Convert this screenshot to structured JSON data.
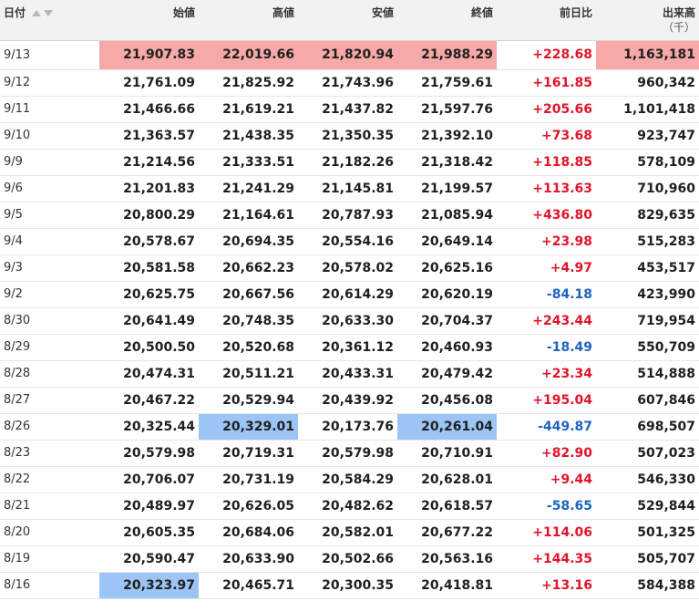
{
  "header": {
    "date": "日付",
    "open": "始値",
    "high": "高値",
    "low": "安値",
    "close": "終値",
    "change": "前日比",
    "volume": "出来高",
    "volume_unit": "（千）",
    "sort_up_icon": "sort-up-icon",
    "sort_down_icon": "sort-down-icon"
  },
  "colors": {
    "positive": "#e0142a",
    "negative": "#1e63c2",
    "highlight_max": "#f7a8a8",
    "highlight_min": "#9cc4f5"
  },
  "rows": [
    {
      "date": "9/13",
      "open": "21,907.83",
      "high": "22,019.66",
      "low": "21,820.94",
      "close": "21,988.29",
      "change": "+228.68",
      "volume": "1,163,181",
      "hl": {
        "open": "max",
        "high": "max",
        "low": "max",
        "close": "max",
        "volume": "max"
      }
    },
    {
      "date": "9/12",
      "open": "21,761.09",
      "high": "21,825.92",
      "low": "21,743.96",
      "close": "21,759.61",
      "change": "+161.85",
      "volume": "960,342",
      "hl": {}
    },
    {
      "date": "9/11",
      "open": "21,466.66",
      "high": "21,619.21",
      "low": "21,437.82",
      "close": "21,597.76",
      "change": "+205.66",
      "volume": "1,101,418",
      "hl": {}
    },
    {
      "date": "9/10",
      "open": "21,363.57",
      "high": "21,438.35",
      "low": "21,350.35",
      "close": "21,392.10",
      "change": "+73.68",
      "volume": "923,747",
      "hl": {}
    },
    {
      "date": "9/9",
      "open": "21,214.56",
      "high": "21,333.51",
      "low": "21,182.26",
      "close": "21,318.42",
      "change": "+118.85",
      "volume": "578,109",
      "hl": {}
    },
    {
      "date": "9/6",
      "open": "21,201.83",
      "high": "21,241.29",
      "low": "21,145.81",
      "close": "21,199.57",
      "change": "+113.63",
      "volume": "710,960",
      "hl": {}
    },
    {
      "date": "9/5",
      "open": "20,800.29",
      "high": "21,164.61",
      "low": "20,787.93",
      "close": "21,085.94",
      "change": "+436.80",
      "volume": "829,635",
      "hl": {}
    },
    {
      "date": "9/4",
      "open": "20,578.67",
      "high": "20,694.35",
      "low": "20,554.16",
      "close": "20,649.14",
      "change": "+23.98",
      "volume": "515,283",
      "hl": {}
    },
    {
      "date": "9/3",
      "open": "20,581.58",
      "high": "20,662.23",
      "low": "20,578.02",
      "close": "20,625.16",
      "change": "+4.97",
      "volume": "453,517",
      "hl": {}
    },
    {
      "date": "9/2",
      "open": "20,625.75",
      "high": "20,667.56",
      "low": "20,614.29",
      "close": "20,620.19",
      "change": "-84.18",
      "volume": "423,990",
      "hl": {}
    },
    {
      "date": "8/30",
      "open": "20,641.49",
      "high": "20,748.35",
      "low": "20,633.30",
      "close": "20,704.37",
      "change": "+243.44",
      "volume": "719,954",
      "hl": {}
    },
    {
      "date": "8/29",
      "open": "20,500.50",
      "high": "20,520.68",
      "low": "20,361.12",
      "close": "20,460.93",
      "change": "-18.49",
      "volume": "550,709",
      "hl": {}
    },
    {
      "date": "8/28",
      "open": "20,474.31",
      "high": "20,511.21",
      "low": "20,433.31",
      "close": "20,479.42",
      "change": "+23.34",
      "volume": "514,888",
      "hl": {}
    },
    {
      "date": "8/27",
      "open": "20,467.22",
      "high": "20,529.94",
      "low": "20,439.92",
      "close": "20,456.08",
      "change": "+195.04",
      "volume": "607,846",
      "hl": {}
    },
    {
      "date": "8/26",
      "open": "20,325.44",
      "high": "20,329.01",
      "low": "20,173.76",
      "close": "20,261.04",
      "change": "-449.87",
      "volume": "698,507",
      "hl": {
        "high": "min",
        "close": "min"
      }
    },
    {
      "date": "8/23",
      "open": "20,579.98",
      "high": "20,719.31",
      "low": "20,579.98",
      "close": "20,710.91",
      "change": "+82.90",
      "volume": "507,023",
      "hl": {}
    },
    {
      "date": "8/22",
      "open": "20,706.07",
      "high": "20,731.19",
      "low": "20,584.29",
      "close": "20,628.01",
      "change": "+9.44",
      "volume": "546,330",
      "hl": {}
    },
    {
      "date": "8/21",
      "open": "20,489.97",
      "high": "20,626.05",
      "low": "20,482.62",
      "close": "20,618.57",
      "change": "-58.65",
      "volume": "529,844",
      "hl": {}
    },
    {
      "date": "8/20",
      "open": "20,605.35",
      "high": "20,684.06",
      "low": "20,582.01",
      "close": "20,677.22",
      "change": "+114.06",
      "volume": "501,325",
      "hl": {}
    },
    {
      "date": "8/19",
      "open": "20,590.47",
      "high": "20,633.90",
      "low": "20,502.66",
      "close": "20,563.16",
      "change": "+144.35",
      "volume": "505,707",
      "hl": {}
    },
    {
      "date": "8/16",
      "open": "20,323.97",
      "high": "20,465.71",
      "low": "20,300.35",
      "close": "20,418.81",
      "change": "+13.16",
      "volume": "584,388",
      "hl": {
        "open": "min"
      }
    }
  ]
}
